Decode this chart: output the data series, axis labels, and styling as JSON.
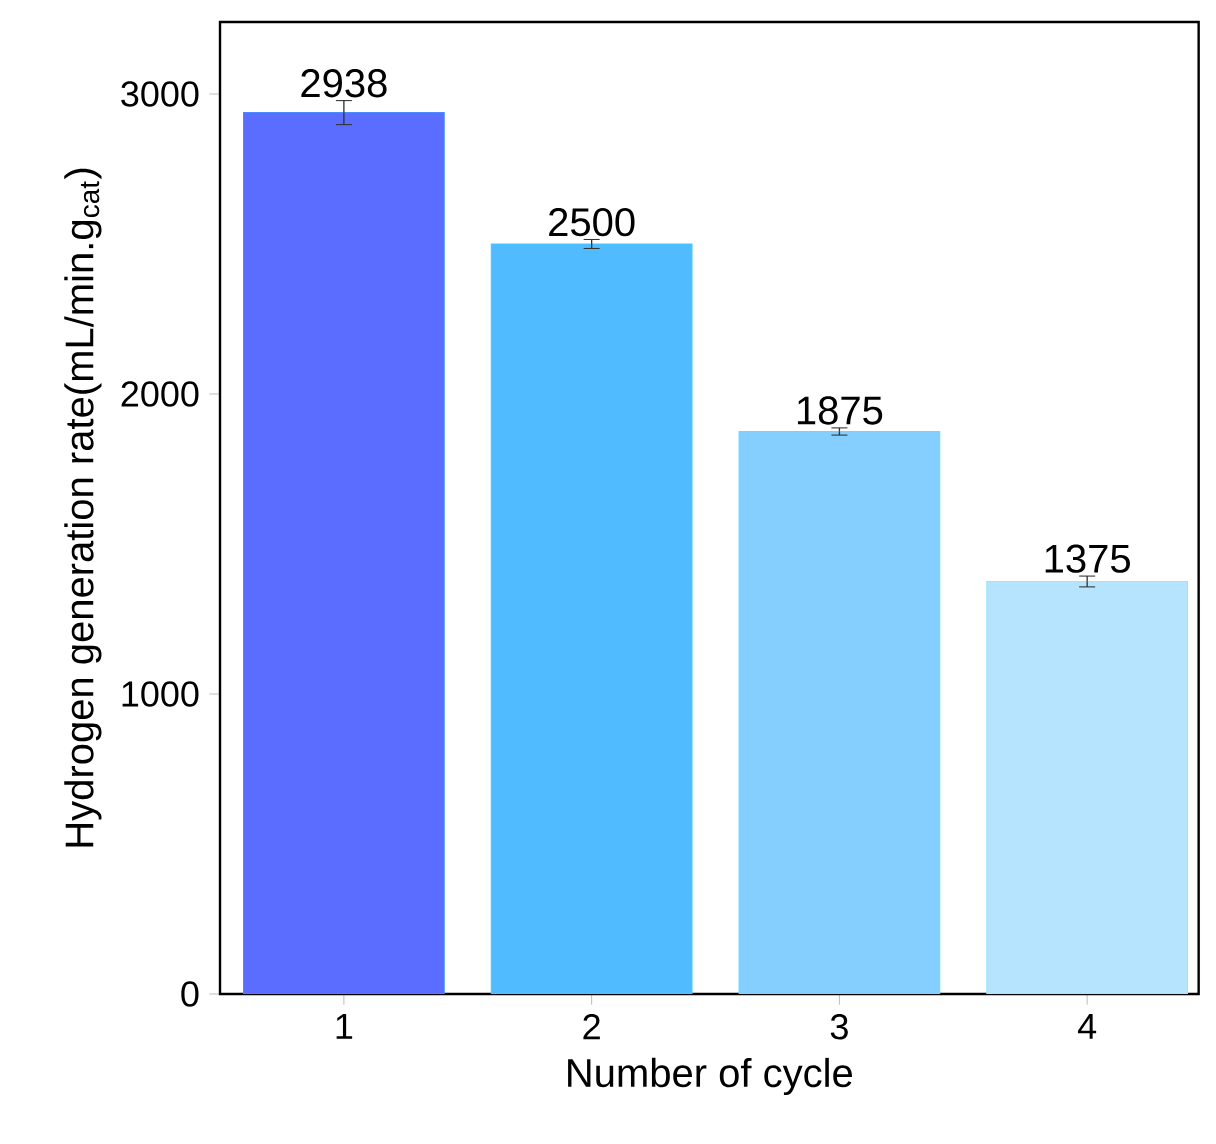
{
  "chart_data": {
    "type": "bar",
    "xlabel": "Number of cycle",
    "ylabel": "Hydrogen generation rate(mL/min.g$_{cat}$)",
    "categories": [
      "1",
      "2",
      "3",
      "4"
    ],
    "values": [
      2938,
      2500,
      1875,
      1375
    ],
    "errors": [
      40,
      15,
      12,
      18
    ],
    "colors": [
      "#5b6dff",
      "#50bcff",
      "#84cfff",
      "#b6e3fd"
    ],
    "ylim": [
      0,
      3240
    ],
    "yticks": [
      0,
      1000,
      2000,
      3000
    ],
    "data_labels": true
  }
}
